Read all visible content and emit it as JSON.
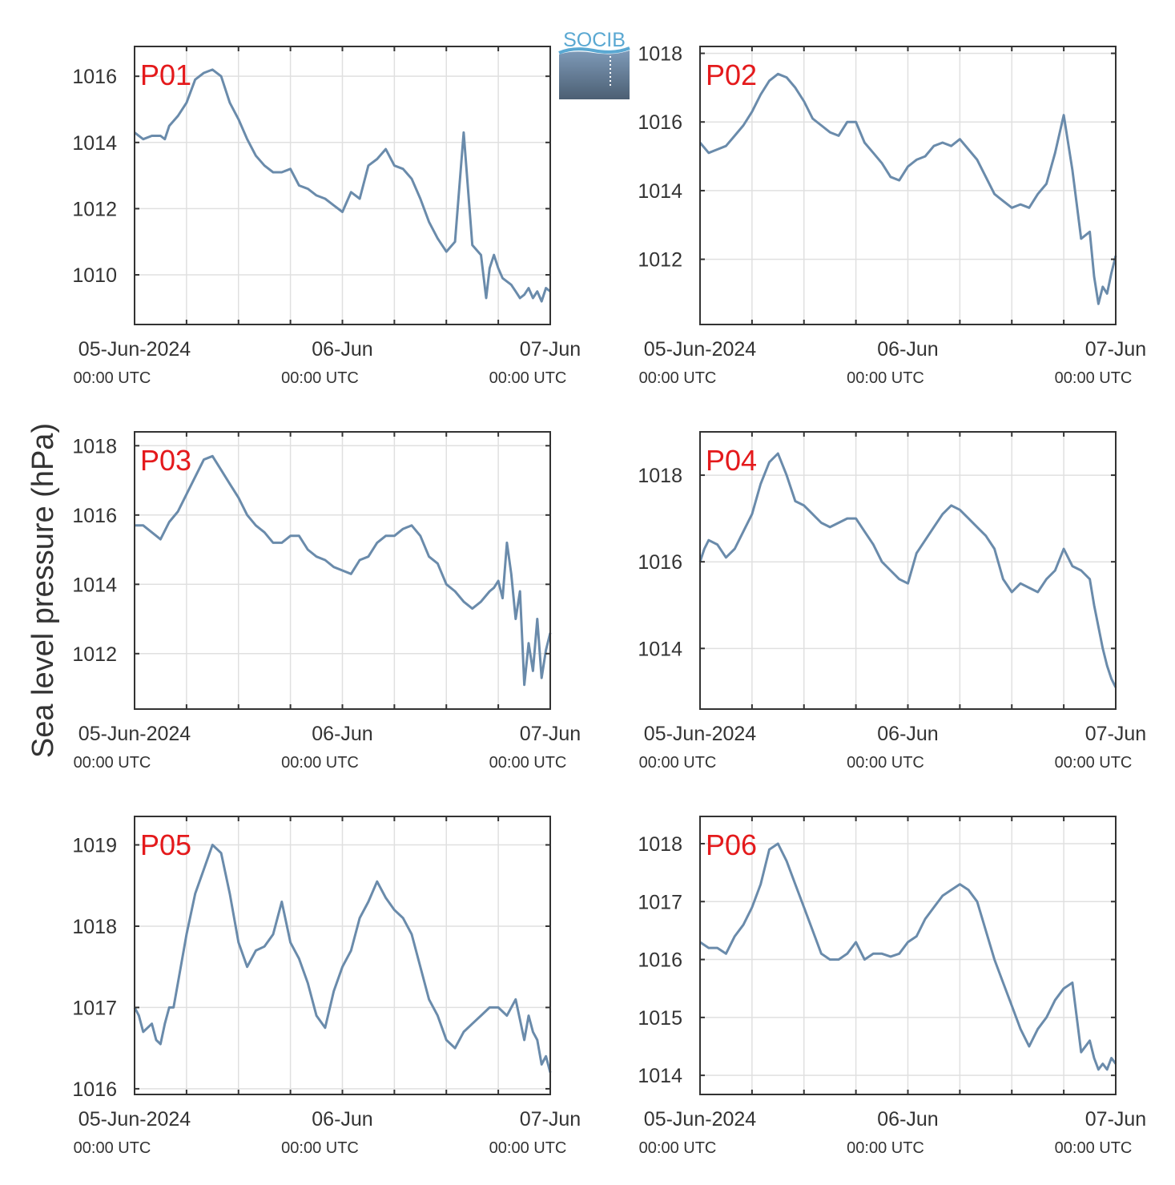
{
  "figure": {
    "ylabel": "Sea level pressure (hPa)",
    "logo_text": "SOCIB",
    "colors": {
      "line": "#6a8bab",
      "grid": "#e0e0e0",
      "axis": "#333333",
      "panel_label": "#e41a1c",
      "text": "#333333"
    }
  },
  "chart_data": [
    {
      "type": "line",
      "panel_label": "P01",
      "xlim": [
        0,
        48
      ],
      "ylim": [
        1008.5,
        1016.9
      ],
      "yticks": [
        1010,
        1012,
        1014,
        1016
      ],
      "x_tick_labels": [
        {
          "x": 0,
          "date": "05-Jun-2024",
          "time": "00:00 UTC"
        },
        {
          "x": 24,
          "date": "06-Jun",
          "time": "00:00 UTC"
        },
        {
          "x": 48,
          "date": "07-Jun",
          "time": "00:00 UTC"
        }
      ],
      "x_grid": [
        0,
        6,
        12,
        18,
        24,
        30,
        36,
        42,
        48
      ],
      "series": [
        {
          "x": [
            0,
            1,
            2,
            3,
            3.5,
            4,
            5,
            6,
            7,
            8,
            9,
            10,
            11,
            12,
            13,
            14,
            15,
            16,
            17,
            18,
            19,
            20,
            21,
            22,
            23,
            24,
            25,
            26,
            27,
            28,
            29,
            30,
            31,
            32,
            33,
            34,
            35,
            36,
            37,
            38,
            39,
            40,
            40.6,
            41,
            41.5,
            42,
            42.5,
            43,
            43.5,
            44,
            44.5,
            45,
            45.5,
            46,
            46.5,
            47,
            47.5,
            48
          ],
          "y": [
            1014.3,
            1014.1,
            1014.2,
            1014.2,
            1014.1,
            1014.5,
            1014.8,
            1015.2,
            1015.9,
            1016.1,
            1016.2,
            1016.0,
            1015.2,
            1014.7,
            1014.1,
            1013.6,
            1013.3,
            1013.1,
            1013.1,
            1013.2,
            1012.7,
            1012.6,
            1012.4,
            1012.3,
            1012.1,
            1011.9,
            1012.5,
            1012.3,
            1013.3,
            1013.5,
            1013.8,
            1013.3,
            1013.2,
            1012.9,
            1012.3,
            1011.6,
            1011.1,
            1010.7,
            1011.0,
            1014.3,
            1010.9,
            1010.6,
            1009.3,
            1010.2,
            1010.6,
            1010.2,
            1009.9,
            1009.8,
            1009.7,
            1009.5,
            1009.3,
            1009.4,
            1009.6,
            1009.3,
            1009.5,
            1009.2,
            1009.6,
            1009.5
          ]
        }
      ]
    },
    {
      "type": "line",
      "panel_label": "P02",
      "xlim": [
        0,
        48
      ],
      "ylim": [
        1010.1,
        1018.2
      ],
      "yticks": [
        1012,
        1014,
        1016,
        1018
      ],
      "x_tick_labels": [
        {
          "x": 0,
          "date": "05-Jun-2024",
          "time": "00:00 UTC"
        },
        {
          "x": 24,
          "date": "06-Jun",
          "time": "00:00 UTC"
        },
        {
          "x": 48,
          "date": "07-Jun",
          "time": "00:00 UTC"
        }
      ],
      "x_grid": [
        0,
        6,
        12,
        18,
        24,
        30,
        36,
        42,
        48
      ],
      "series": [
        {
          "x": [
            0,
            1,
            2,
            3,
            4,
            5,
            6,
            7,
            8,
            9,
            10,
            11,
            12,
            13,
            14,
            15,
            16,
            17,
            18,
            19,
            20,
            21,
            22,
            23,
            24,
            25,
            26,
            27,
            28,
            29,
            30,
            31,
            32,
            33,
            34,
            35,
            36,
            37,
            38,
            39,
            40,
            41,
            42,
            43,
            44,
            45,
            45.5,
            46,
            46.5,
            47,
            47.5,
            48
          ],
          "y": [
            1015.4,
            1015.1,
            1015.2,
            1015.3,
            1015.6,
            1015.9,
            1016.3,
            1016.8,
            1017.2,
            1017.4,
            1017.3,
            1017.0,
            1016.6,
            1016.1,
            1015.9,
            1015.7,
            1015.6,
            1016.0,
            1016.0,
            1015.4,
            1015.1,
            1014.8,
            1014.4,
            1014.3,
            1014.7,
            1014.9,
            1015.0,
            1015.3,
            1015.4,
            1015.3,
            1015.5,
            1015.2,
            1014.9,
            1014.4,
            1013.9,
            1013.7,
            1013.5,
            1013.6,
            1013.5,
            1013.9,
            1014.2,
            1015.1,
            1016.2,
            1014.6,
            1012.6,
            1012.8,
            1011.5,
            1010.7,
            1011.2,
            1011.0,
            1011.6,
            1012.1
          ]
        }
      ]
    },
    {
      "type": "line",
      "panel_label": "P03",
      "xlim": [
        0,
        48
      ],
      "ylim": [
        1010.4,
        1018.4
      ],
      "yticks": [
        1012,
        1014,
        1016,
        1018
      ],
      "x_tick_labels": [
        {
          "x": 0,
          "date": "05-Jun-2024",
          "time": "00:00 UTC"
        },
        {
          "x": 24,
          "date": "06-Jun",
          "time": "00:00 UTC"
        },
        {
          "x": 48,
          "date": "07-Jun",
          "time": "00:00 UTC"
        }
      ],
      "x_grid": [
        0,
        6,
        12,
        18,
        24,
        30,
        36,
        42,
        48
      ],
      "series": [
        {
          "x": [
            0,
            1,
            2,
            3,
            4,
            5,
            6,
            7,
            8,
            9,
            10,
            11,
            12,
            13,
            14,
            15,
            16,
            17,
            18,
            19,
            20,
            21,
            22,
            23,
            24,
            25,
            26,
            27,
            28,
            29,
            30,
            31,
            32,
            33,
            34,
            35,
            36,
            37,
            38,
            39,
            40,
            41,
            41.5,
            42,
            42.5,
            43,
            43.5,
            44,
            44.5,
            45,
            45.5,
            46,
            46.5,
            47,
            47.5,
            48
          ],
          "y": [
            1015.7,
            1015.7,
            1015.5,
            1015.3,
            1015.8,
            1016.1,
            1016.6,
            1017.1,
            1017.6,
            1017.7,
            1017.3,
            1016.9,
            1016.5,
            1016.0,
            1015.7,
            1015.5,
            1015.2,
            1015.2,
            1015.4,
            1015.4,
            1015.0,
            1014.8,
            1014.7,
            1014.5,
            1014.4,
            1014.3,
            1014.7,
            1014.8,
            1015.2,
            1015.4,
            1015.4,
            1015.6,
            1015.7,
            1015.4,
            1014.8,
            1014.6,
            1014.0,
            1013.8,
            1013.5,
            1013.3,
            1013.5,
            1013.8,
            1013.9,
            1014.1,
            1013.6,
            1015.2,
            1014.3,
            1013.0,
            1013.8,
            1011.1,
            1012.3,
            1011.5,
            1013.0,
            1011.3,
            1012.1,
            1012.6
          ]
        }
      ]
    },
    {
      "type": "line",
      "panel_label": "P04",
      "xlim": [
        0,
        48
      ],
      "ylim": [
        1012.6,
        1019.0
      ],
      "yticks": [
        1014,
        1016,
        1018
      ],
      "x_tick_labels": [
        {
          "x": 0,
          "date": "05-Jun-2024",
          "time": "00:00 UTC"
        },
        {
          "x": 24,
          "date": "06-Jun",
          "time": "00:00 UTC"
        },
        {
          "x": 48,
          "date": "07-Jun",
          "time": "00:00 UTC"
        }
      ],
      "x_grid": [
        0,
        6,
        12,
        18,
        24,
        30,
        36,
        42,
        48
      ],
      "series": [
        {
          "x": [
            0,
            0.5,
            1,
            2,
            3,
            4,
            5,
            6,
            7,
            8,
            9,
            10,
            11,
            12,
            13,
            14,
            15,
            16,
            17,
            18,
            19,
            20,
            21,
            22,
            23,
            24,
            25,
            26,
            27,
            28,
            29,
            30,
            31,
            32,
            33,
            34,
            35,
            36,
            37,
            38,
            39,
            40,
            41,
            42,
            43,
            44,
            45,
            45.5,
            46,
            46.5,
            47,
            47.5,
            48
          ],
          "y": [
            1016.0,
            1016.3,
            1016.5,
            1016.4,
            1016.1,
            1016.3,
            1016.7,
            1017.1,
            1017.8,
            1018.3,
            1018.5,
            1018.0,
            1017.4,
            1017.3,
            1017.1,
            1016.9,
            1016.8,
            1016.9,
            1017.0,
            1017.0,
            1016.7,
            1016.4,
            1016.0,
            1015.8,
            1015.6,
            1015.5,
            1016.2,
            1016.5,
            1016.8,
            1017.1,
            1017.3,
            1017.2,
            1017.0,
            1016.8,
            1016.6,
            1016.3,
            1015.6,
            1015.3,
            1015.5,
            1015.4,
            1015.3,
            1015.6,
            1015.8,
            1016.3,
            1015.9,
            1015.8,
            1015.6,
            1015.0,
            1014.5,
            1014.0,
            1013.6,
            1013.3,
            1013.1
          ]
        }
      ]
    },
    {
      "type": "line",
      "panel_label": "P05",
      "xlim": [
        0,
        48
      ],
      "ylim": [
        1015.93,
        1019.35
      ],
      "yticks": [
        1016,
        1017,
        1018,
        1019
      ],
      "x_tick_labels": [
        {
          "x": 0,
          "date": "05-Jun-2024",
          "time": "00:00 UTC"
        },
        {
          "x": 24,
          "date": "06-Jun",
          "time": "00:00 UTC"
        },
        {
          "x": 48,
          "date": "07-Jun",
          "time": "00:00 UTC"
        }
      ],
      "x_grid": [
        0,
        6,
        12,
        18,
        24,
        30,
        36,
        42,
        48
      ],
      "series": [
        {
          "x": [
            0,
            0.5,
            1,
            1.5,
            2,
            2.5,
            3,
            3.5,
            4,
            4.5,
            5,
            6,
            7,
            8,
            9,
            10,
            11,
            12,
            13,
            14,
            15,
            16,
            17,
            18,
            19,
            20,
            21,
            22,
            23,
            24,
            25,
            26,
            27,
            28,
            29,
            30,
            31,
            32,
            33,
            34,
            35,
            36,
            37,
            38,
            39,
            40,
            41,
            42,
            43,
            44,
            45,
            45.5,
            46,
            46.5,
            47,
            47.5,
            48
          ],
          "y": [
            1017.0,
            1016.9,
            1016.7,
            1016.75,
            1016.8,
            1016.6,
            1016.55,
            1016.8,
            1017.0,
            1017.0,
            1017.3,
            1017.9,
            1018.4,
            1018.7,
            1019.0,
            1018.9,
            1018.4,
            1017.8,
            1017.5,
            1017.7,
            1017.75,
            1017.9,
            1018.3,
            1017.8,
            1017.6,
            1017.3,
            1016.9,
            1016.75,
            1017.2,
            1017.5,
            1017.7,
            1018.1,
            1018.3,
            1018.55,
            1018.35,
            1018.2,
            1018.1,
            1017.9,
            1017.5,
            1017.1,
            1016.9,
            1016.6,
            1016.5,
            1016.7,
            1016.8,
            1016.9,
            1017.0,
            1017.0,
            1016.9,
            1017.1,
            1016.6,
            1016.9,
            1016.7,
            1016.6,
            1016.3,
            1016.4,
            1016.2
          ]
        }
      ]
    },
    {
      "type": "line",
      "panel_label": "P06",
      "xlim": [
        0,
        48
      ],
      "ylim": [
        1013.67,
        1018.47
      ],
      "yticks": [
        1014,
        1015,
        1016,
        1017,
        1018
      ],
      "x_tick_labels": [
        {
          "x": 0,
          "date": "05-Jun-2024",
          "time": "00:00 UTC"
        },
        {
          "x": 24,
          "date": "06-Jun",
          "time": "00:00 UTC"
        },
        {
          "x": 48,
          "date": "07-Jun",
          "time": "00:00 UTC"
        }
      ],
      "x_grid": [
        0,
        6,
        12,
        18,
        24,
        30,
        36,
        42,
        48
      ],
      "series": [
        {
          "x": [
            0,
            1,
            2,
            3,
            4,
            5,
            6,
            7,
            8,
            9,
            10,
            11,
            12,
            13,
            14,
            15,
            16,
            17,
            18,
            19,
            20,
            21,
            22,
            23,
            24,
            25,
            26,
            27,
            28,
            29,
            30,
            31,
            32,
            33,
            34,
            35,
            36,
            37,
            38,
            39,
            40,
            41,
            42,
            43,
            44,
            45,
            45.5,
            46,
            46.5,
            47,
            47.5,
            48
          ],
          "y": [
            1016.3,
            1016.2,
            1016.2,
            1016.1,
            1016.4,
            1016.6,
            1016.9,
            1017.3,
            1017.9,
            1018.0,
            1017.7,
            1017.3,
            1016.9,
            1016.5,
            1016.1,
            1016.0,
            1016.0,
            1016.1,
            1016.3,
            1016.0,
            1016.1,
            1016.1,
            1016.05,
            1016.1,
            1016.3,
            1016.4,
            1016.7,
            1016.9,
            1017.1,
            1017.2,
            1017.3,
            1017.2,
            1017.0,
            1016.5,
            1016.0,
            1015.6,
            1015.2,
            1014.8,
            1014.5,
            1014.8,
            1015.0,
            1015.3,
            1015.5,
            1015.6,
            1014.4,
            1014.6,
            1014.3,
            1014.1,
            1014.2,
            1014.1,
            1014.3,
            1014.2
          ]
        }
      ]
    }
  ]
}
